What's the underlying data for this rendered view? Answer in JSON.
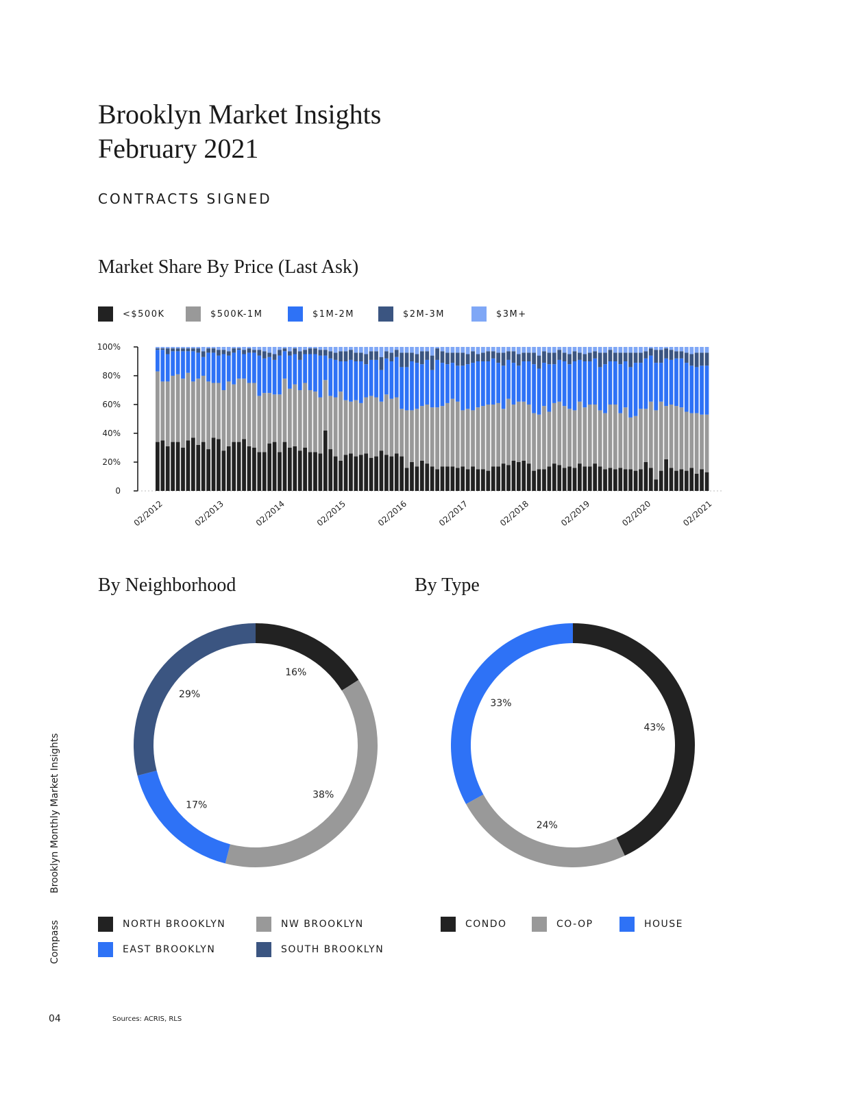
{
  "header": {
    "title_line1": "Brooklyn Market Insights",
    "title_line2": "February 2021",
    "section": "CONTRACTS SIGNED"
  },
  "colors": {
    "lt500k": "#222222",
    "500k_1m": "#999999",
    "1m_2m": "#2e72f6",
    "2m_3m": "#3b5581",
    "3m_plus": "#7fa7f6"
  },
  "chart_data": [
    {
      "type": "bar",
      "stacked": true,
      "title": "Market Share By Price (Last Ask)",
      "legend_position": "top-left",
      "ylim": [
        0,
        100
      ],
      "y_ticks": [
        "0",
        "20%",
        "40%",
        "60%",
        "80%",
        "100%"
      ],
      "x_ticks": [
        "02/2012",
        "02/2013",
        "02/2014",
        "02/2015",
        "02/2016",
        "02/2017",
        "02/2018",
        "02/2019",
        "02/2020",
        "02/2021"
      ],
      "series": [
        {
          "name": "<$500K",
          "color": "#222222",
          "values": [
            34,
            35,
            31,
            34,
            34,
            30,
            35,
            37,
            32,
            34,
            29,
            37,
            36,
            28,
            31,
            34,
            34,
            36,
            31,
            30,
            27,
            27,
            33,
            34,
            27,
            34,
            30,
            31,
            28,
            30,
            27,
            27,
            26,
            42,
            29,
            24,
            21,
            25,
            26,
            24,
            25,
            26,
            23,
            24,
            28,
            25,
            24,
            26,
            24,
            16,
            20,
            17,
            21,
            19,
            17,
            15,
            17,
            17,
            17,
            16,
            17,
            15,
            17,
            15,
            15,
            14,
            17,
            17,
            19,
            18,
            21,
            20,
            21,
            19,
            14,
            15,
            15,
            17,
            19,
            18,
            16,
            17,
            16,
            19,
            17,
            17,
            19,
            17,
            15,
            16,
            15,
            16,
            15,
            15,
            14,
            15,
            20,
            16,
            8,
            14,
            22,
            16,
            14,
            15,
            14,
            16,
            12,
            15,
            13
          ]
        },
        {
          "name": "$500K-1M",
          "color": "#999999",
          "values": [
            49,
            41,
            45,
            46,
            47,
            48,
            47,
            39,
            46,
            46,
            47,
            38,
            39,
            42,
            45,
            40,
            44,
            42,
            44,
            45,
            39,
            41,
            35,
            33,
            40,
            44,
            41,
            43,
            42,
            45,
            43,
            42,
            39,
            35,
            37,
            41,
            48,
            38,
            36,
            39,
            36,
            39,
            43,
            41,
            34,
            42,
            40,
            39,
            33,
            40,
            36,
            40,
            38,
            41,
            41,
            43,
            42,
            44,
            47,
            46,
            39,
            42,
            39,
            43,
            44,
            46,
            43,
            44,
            38,
            46,
            39,
            42,
            41,
            41,
            40,
            38,
            44,
            38,
            42,
            44,
            43,
            40,
            40,
            43,
            41,
            43,
            41,
            39,
            39,
            44,
            45,
            38,
            43,
            36,
            38,
            42,
            37,
            46,
            48,
            48,
            37,
            44,
            45,
            43,
            41,
            38,
            42,
            38,
            40
          ]
        },
        {
          "name": "$1M-2M",
          "color": "#2e72f6",
          "values": [
            15,
            22,
            19,
            17,
            16,
            19,
            15,
            21,
            18,
            13,
            20,
            21,
            19,
            25,
            18,
            22,
            20,
            17,
            21,
            21,
            28,
            24,
            25,
            24,
            27,
            19,
            23,
            21,
            21,
            20,
            25,
            26,
            29,
            17,
            26,
            26,
            21,
            27,
            29,
            27,
            29,
            23,
            25,
            26,
            22,
            25,
            26,
            28,
            29,
            30,
            34,
            32,
            29,
            31,
            26,
            33,
            30,
            27,
            25,
            25,
            31,
            31,
            33,
            32,
            31,
            30,
            32,
            28,
            30,
            27,
            29,
            25,
            28,
            30,
            34,
            32,
            30,
            33,
            27,
            29,
            31,
            31,
            34,
            29,
            32,
            30,
            32,
            30,
            34,
            30,
            30,
            34,
            32,
            35,
            37,
            32,
            35,
            32,
            33,
            27,
            33,
            31,
            33,
            34,
            34,
            33,
            32,
            34,
            34
          ]
        },
        {
          "name": "$2M-3M",
          "color": "#3b5581",
          "values": [
            1,
            1,
            4,
            2,
            2,
            2,
            2,
            2,
            3,
            4,
            3,
            3,
            4,
            3,
            3,
            3,
            1,
            3,
            3,
            2,
            4,
            5,
            3,
            4,
            4,
            2,
            3,
            4,
            6,
            3,
            4,
            4,
            4,
            4,
            5,
            5,
            7,
            7,
            7,
            6,
            6,
            7,
            6,
            6,
            9,
            5,
            6,
            5,
            10,
            10,
            6,
            6,
            9,
            6,
            10,
            8,
            8,
            8,
            7,
            9,
            9,
            7,
            8,
            5,
            6,
            7,
            5,
            7,
            9,
            6,
            8,
            8,
            6,
            6,
            8,
            9,
            8,
            8,
            8,
            7,
            6,
            7,
            7,
            5,
            5,
            6,
            5,
            10,
            8,
            8,
            6,
            8,
            6,
            10,
            7,
            7,
            5,
            5,
            9,
            9,
            7,
            7,
            5,
            5,
            7,
            8,
            10,
            9,
            9
          ]
        },
        {
          "name": "$3M+",
          "color": "#7fa7f6",
          "values": [
            1,
            1,
            1,
            1,
            1,
            1,
            1,
            1,
            1,
            3,
            1,
            1,
            2,
            2,
            3,
            1,
            1,
            2,
            1,
            2,
            2,
            3,
            4,
            5,
            2,
            1,
            3,
            1,
            3,
            2,
            1,
            1,
            2,
            2,
            3,
            4,
            3,
            3,
            2,
            4,
            4,
            5,
            3,
            3,
            7,
            3,
            4,
            2,
            4,
            4,
            4,
            5,
            3,
            3,
            6,
            1,
            3,
            4,
            4,
            4,
            4,
            5,
            3,
            5,
            4,
            3,
            3,
            4,
            4,
            3,
            3,
            5,
            4,
            4,
            4,
            6,
            3,
            4,
            4,
            2,
            4,
            5,
            3,
            4,
            5,
            4,
            3,
            4,
            4,
            2,
            4,
            4,
            4,
            4,
            4,
            4,
            3,
            1,
            2,
            2,
            1,
            2,
            3,
            3,
            4,
            5,
            4,
            4,
            4
          ]
        }
      ]
    },
    {
      "type": "pie",
      "donut": true,
      "title": "By Neighborhood",
      "slices": [
        {
          "name": "NORTH BROOKLYN",
          "value": 16,
          "label": "16%",
          "color": "#222222"
        },
        {
          "name": "NW BROOKLYN",
          "value": 38,
          "label": "38%",
          "color": "#999999"
        },
        {
          "name": "EAST BROOKLYN",
          "value": 17,
          "label": "17%",
          "color": "#2e72f6"
        },
        {
          "name": "SOUTH BROOKLYN",
          "value": 29,
          "label": "29%",
          "color": "#3b5581"
        }
      ]
    },
    {
      "type": "pie",
      "donut": true,
      "title": "By Type",
      "slices": [
        {
          "name": "CONDO",
          "value": 43,
          "label": "43%",
          "color": "#222222"
        },
        {
          "name": "CO-OP",
          "value": 24,
          "label": "24%",
          "color": "#999999"
        },
        {
          "name": "HOUSE",
          "value": 33,
          "label": "33%",
          "color": "#2e72f6"
        }
      ]
    }
  ],
  "sidebar": {
    "publication": "Brooklyn Monthly Market Insights",
    "brand": "Compass"
  },
  "footer": {
    "page": "04",
    "sources": "Sources: ACRIS, RLS"
  }
}
